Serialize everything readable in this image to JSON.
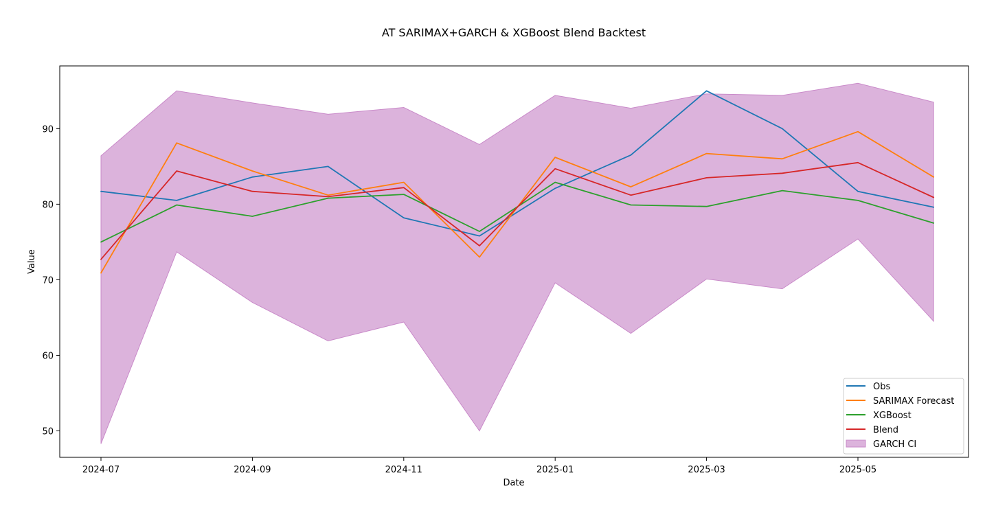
{
  "chart_data": {
    "type": "line",
    "title": "AT SARIMAX+GARCH & XGBoost Blend Backtest",
    "xlabel": "Date",
    "ylabel": "Value",
    "x": [
      "2024-07",
      "2024-08",
      "2024-09",
      "2024-10",
      "2024-11",
      "2024-12",
      "2025-01",
      "2025-02",
      "2025-03",
      "2025-04",
      "2025-05",
      "2025-06"
    ],
    "x_ticks": [
      "2024-07",
      "2024-09",
      "2024-11",
      "2025-01",
      "2025-03",
      "2025-05"
    ],
    "y_ticks": [
      50,
      60,
      70,
      80,
      90
    ],
    "ylim": [
      46.5,
      98.3
    ],
    "grid": false,
    "legend_position": "lower-right",
    "series": [
      {
        "name": "Obs",
        "color": "#1f77b4",
        "values": [
          81.7,
          80.5,
          83.6,
          85.0,
          78.2,
          75.8,
          82.1,
          86.5,
          95.0,
          90.0,
          81.7,
          79.6
        ]
      },
      {
        "name": "SARIMAX Forecast",
        "color": "#ff7f0e",
        "values": [
          70.9,
          88.1,
          84.4,
          81.2,
          82.9,
          73.0,
          86.2,
          82.3,
          86.7,
          86.0,
          89.6,
          83.6
        ]
      },
      {
        "name": "XGBoost",
        "color": "#2ca02c",
        "values": [
          75.0,
          79.9,
          78.4,
          80.8,
          81.3,
          76.4,
          82.9,
          79.9,
          79.7,
          81.8,
          80.5,
          77.5
        ]
      },
      {
        "name": "Blend",
        "color": "#d62728",
        "values": [
          72.7,
          84.4,
          81.7,
          81.0,
          82.2,
          74.5,
          84.7,
          81.2,
          83.5,
          84.1,
          85.5,
          80.9
        ]
      }
    ],
    "band": {
      "name": "GARCH CI",
      "color": "#c98ac9",
      "upper": [
        86.4,
        95.0,
        93.4,
        91.9,
        92.8,
        87.9,
        94.4,
        92.7,
        94.6,
        94.4,
        96.0,
        93.5
      ],
      "lower": [
        48.3,
        73.7,
        67.0,
        61.9,
        64.4,
        50.0,
        69.6,
        62.9,
        70.1,
        68.8,
        75.4,
        64.5
      ]
    }
  }
}
